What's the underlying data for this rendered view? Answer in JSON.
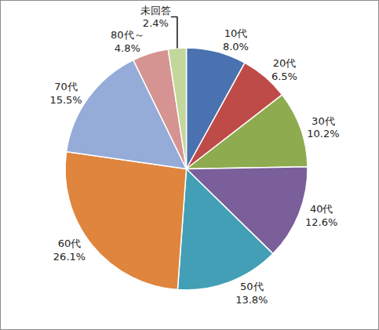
{
  "chart_data": {
    "type": "pie",
    "categories": [
      "10代",
      "20代",
      "30代",
      "40代",
      "50代",
      "60代",
      "70代",
      "80代～",
      "未回答"
    ],
    "values": [
      8.0,
      6.5,
      10.2,
      12.6,
      13.8,
      26.1,
      15.5,
      4.8,
      2.4
    ],
    "value_labels": [
      "8.0%",
      "6.5%",
      "10.2%",
      "12.6%",
      "13.8%",
      "26.1%",
      "15.5%",
      "4.8%",
      "2.4%"
    ],
    "colors": [
      "#4a72b0",
      "#be4b48",
      "#8eab4f",
      "#7a5f9a",
      "#439fb5",
      "#df853e",
      "#95abd8",
      "#d59391",
      "#c3d69b"
    ],
    "data_labels": true
  }
}
